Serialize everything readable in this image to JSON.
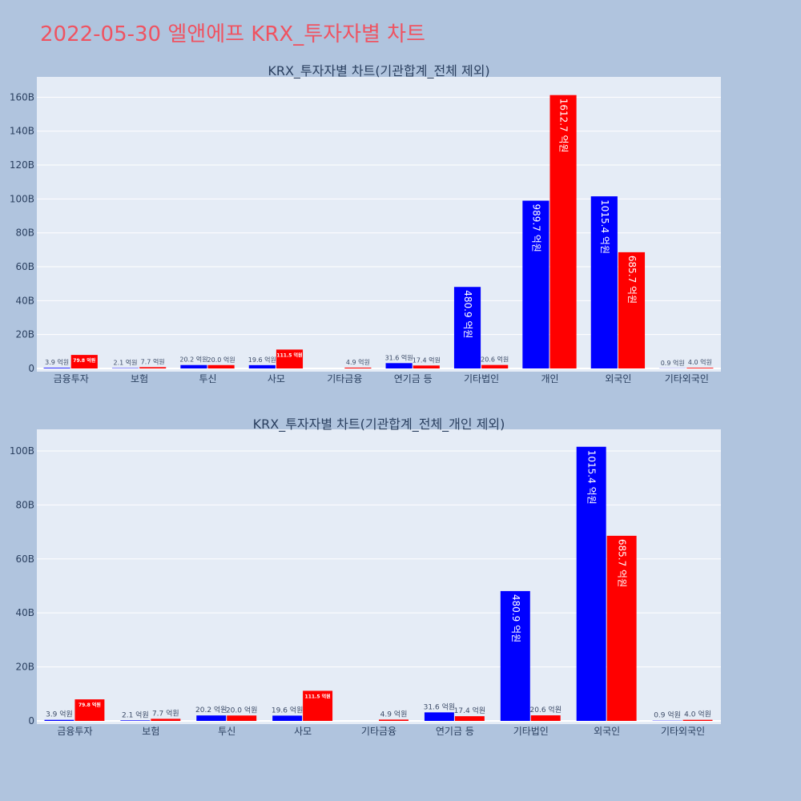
{
  "title": "2022-05-30 엘앤에프 KRX_투자자별 차트",
  "colors": {
    "background": "#b0c4de",
    "plot_bg": "#e5ecf6",
    "title": "#ef5361",
    "bar_a": "#0000ff",
    "bar_b": "#ff0000",
    "text": "#2a3f5f"
  },
  "chart_data": [
    {
      "type": "bar",
      "title": "KRX_투자자별 차트(기관합계_전체 제외)",
      "categories": [
        "금융투자",
        "보험",
        "투신",
        "사모",
        "기타금융",
        "연기금 등",
        "기타법인",
        "개인",
        "외국인",
        "기타외국인"
      ],
      "series": [
        {
          "values": [
            0.39,
            0.21,
            2.02,
            1.96,
            0,
            3.16,
            48.09,
            98.97,
            101.54,
            0.09
          ],
          "labels": [
            "3.9 억원",
            "2.1 억원",
            "20.2 억원",
            "19.6 억원",
            "",
            "31.6 억원",
            "480.9 억원",
            "989.7 억원",
            "1015.4 억원",
            "0.9 억원"
          ]
        },
        {
          "values": [
            7.98,
            0.77,
            2.0,
            11.15,
            0.49,
            1.74,
            2.06,
            161.27,
            68.57,
            0.4
          ],
          "labels": [
            "79.8 억원",
            "7.7 억원",
            "20.0 억원",
            "111.5 억원",
            "4.9 억원",
            "17.4 억원",
            "20.6 억원",
            "1612.7 억원",
            "685.7 억원",
            "4.0 억원"
          ]
        }
      ],
      "y_unit": "B",
      "ylim": [
        0,
        172
      ],
      "yticks": [
        "0",
        "20B",
        "40B",
        "60B",
        "80B",
        "100B",
        "120B",
        "140B",
        "160B"
      ],
      "grid": true
    },
    {
      "type": "bar",
      "title": "KRX_투자자별 차트(기관합계_전체_개인 제외)",
      "categories": [
        "금융투자",
        "보험",
        "투신",
        "사모",
        "기타금융",
        "연기금 등",
        "기타법인",
        "외국인",
        "기타외국인"
      ],
      "series": [
        {
          "values": [
            0.39,
            0.21,
            2.02,
            1.96,
            0,
            3.16,
            48.09,
            101.54,
            0.09
          ],
          "labels": [
            "3.9 억원",
            "2.1 억원",
            "20.2 억원",
            "19.6 억원",
            "",
            "31.6 억원",
            "480.9 억원",
            "1015.4 억원",
            "0.9 억원"
          ]
        },
        {
          "values": [
            7.98,
            0.77,
            2.0,
            11.15,
            0.49,
            1.74,
            2.06,
            68.57,
            0.4
          ],
          "labels": [
            "79.8 억원",
            "7.7 억원",
            "20.0 억원",
            "111.5 억원",
            "4.9 억원",
            "17.4 억원",
            "20.6 억원",
            "685.7 억원",
            "4.0 억원"
          ]
        }
      ],
      "y_unit": "B",
      "ylim": [
        0,
        108
      ],
      "yticks": [
        "0",
        "20B",
        "40B",
        "60B",
        "80B",
        "100B"
      ],
      "grid": true
    }
  ]
}
